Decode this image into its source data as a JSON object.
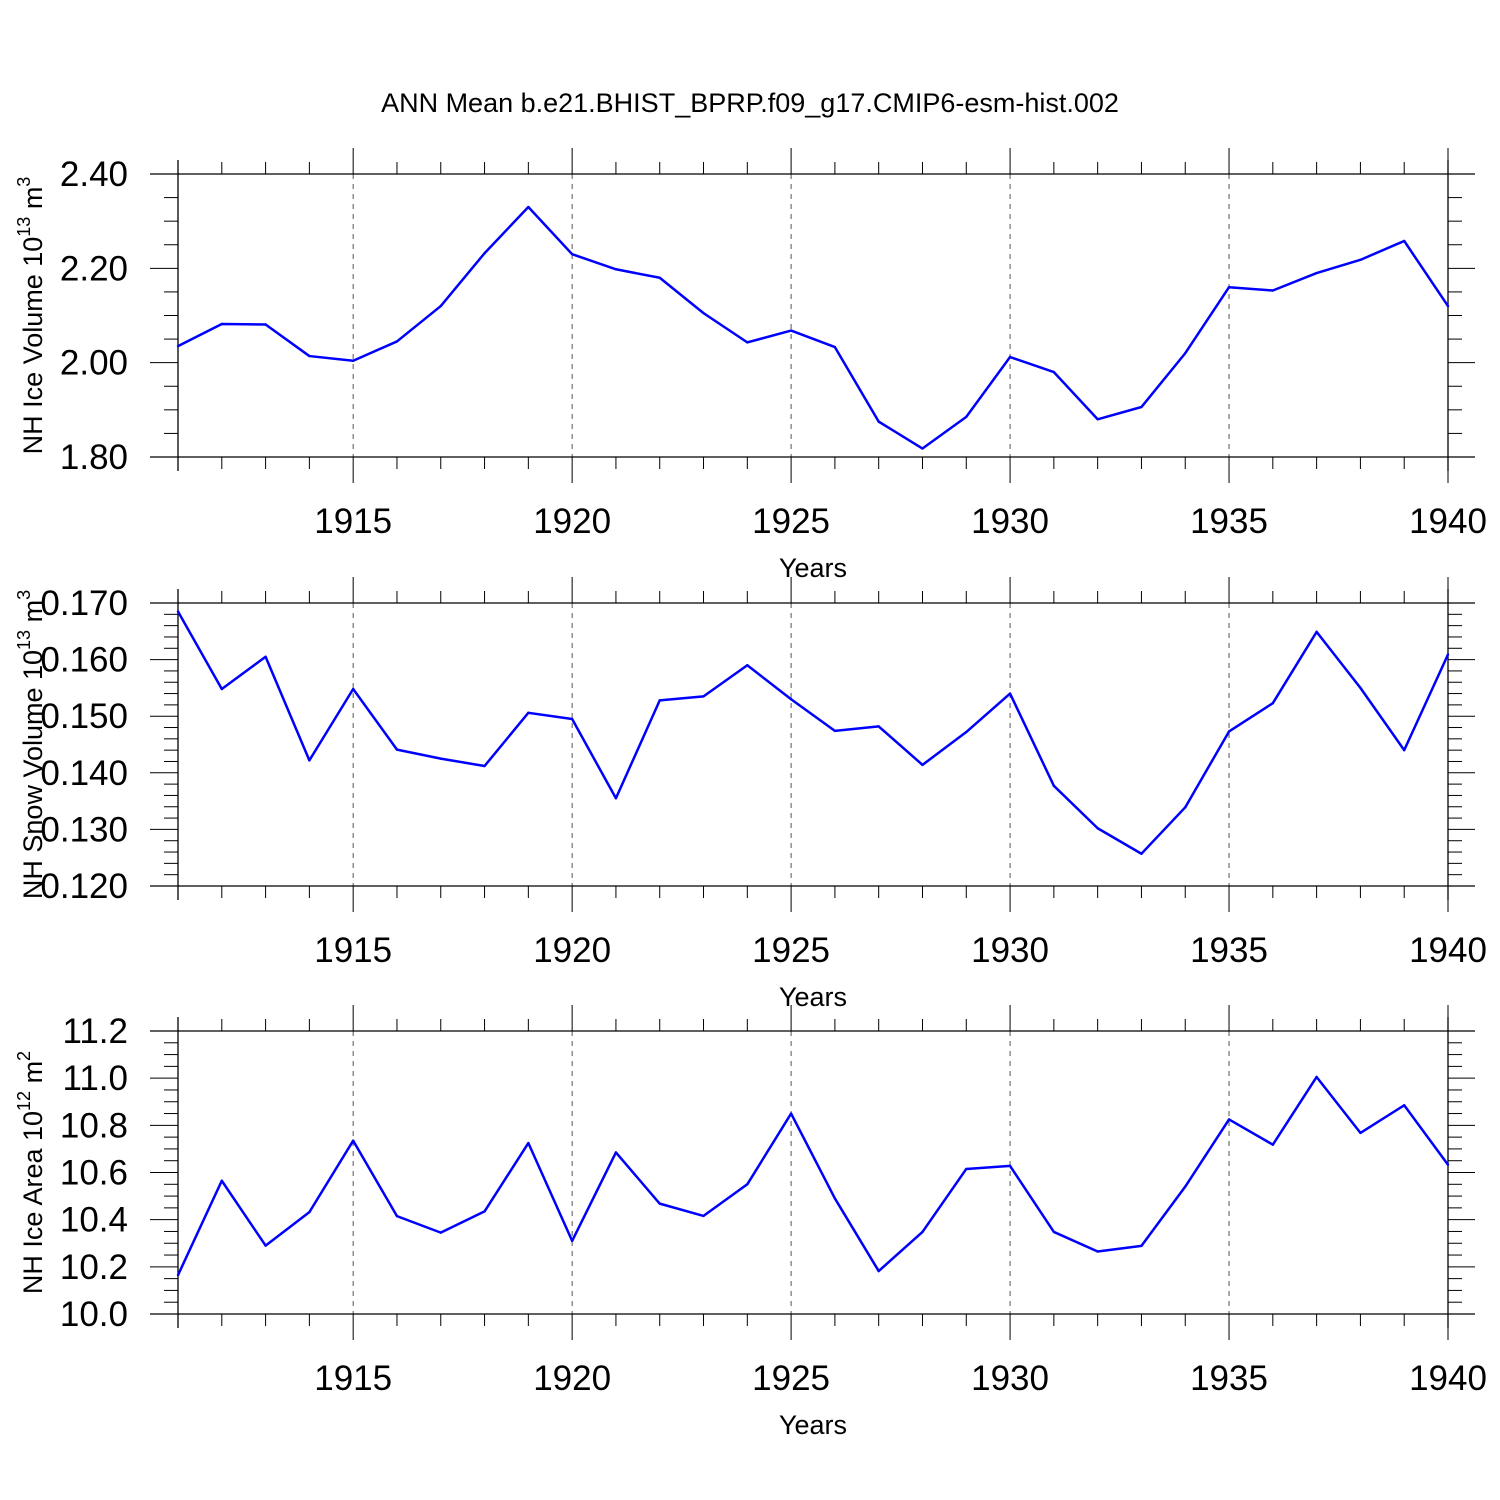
{
  "title": "ANN Mean b.e21.BHIST_BPRP.f09_g17.CMIP6-esm-hist.002",
  "colors": {
    "line": "#0000ff",
    "axis": "#000000",
    "grid": "#555555"
  },
  "chart_data": [
    {
      "type": "line",
      "ylabel": "NH Ice Volume",
      "ylabel_unit_base": "10",
      "ylabel_unit_exp": "13",
      "ylabel_unit_sym": "m",
      "ylabel_unit_sym_exp": "3",
      "xlabel": "Years",
      "xlim": [
        1911,
        1940
      ],
      "ylim": [
        1.8,
        2.4
      ],
      "xticks": [
        "1915",
        "1920",
        "1925",
        "1930",
        "1935",
        "1940"
      ],
      "yticks": [
        "1.80",
        "2.00",
        "2.20",
        "2.40"
      ],
      "grid": "vertical dashed at major x ticks",
      "x": [
        1911,
        1912,
        1913,
        1914,
        1915,
        1916,
        1917,
        1918,
        1919,
        1920,
        1921,
        1922,
        1923,
        1924,
        1925,
        1926,
        1927,
        1928,
        1929,
        1930,
        1931,
        1932,
        1933,
        1934,
        1935,
        1936,
        1937,
        1938,
        1939,
        1940
      ],
      "series": [
        {
          "values": [
            2.035,
            2.082,
            2.081,
            2.014,
            2.004,
            2.045,
            2.12,
            2.232,
            2.33,
            2.23,
            2.198,
            2.18,
            2.105,
            2.043,
            2.068,
            2.033,
            1.875,
            1.818,
            1.885,
            2.012,
            1.98,
            1.88,
            1.906,
            2.02,
            2.16,
            2.153,
            2.19,
            2.218,
            2.258,
            2.12
          ]
        }
      ]
    },
    {
      "type": "line",
      "ylabel": "NH Snow Volume",
      "ylabel_unit_base": "10",
      "ylabel_unit_exp": "13",
      "ylabel_unit_sym": "m",
      "ylabel_unit_sym_exp": "3",
      "xlabel": "Years",
      "xlim": [
        1911,
        1940
      ],
      "ylim": [
        0.12,
        0.17
      ],
      "xticks": [
        "1915",
        "1920",
        "1925",
        "1930",
        "1935",
        "1940"
      ],
      "yticks": [
        "0.120",
        "0.130",
        "0.140",
        "0.150",
        "0.160",
        "0.170"
      ],
      "grid": "vertical dashed at major x ticks",
      "x": [
        1911,
        1912,
        1913,
        1914,
        1915,
        1916,
        1917,
        1918,
        1919,
        1920,
        1921,
        1922,
        1923,
        1924,
        1925,
        1926,
        1927,
        1928,
        1929,
        1930,
        1931,
        1932,
        1933,
        1934,
        1935,
        1936,
        1937,
        1938,
        1939,
        1940
      ],
      "series": [
        {
          "values": [
            0.1685,
            0.1548,
            0.1605,
            0.1422,
            0.1548,
            0.1441,
            0.1425,
            0.1412,
            0.1506,
            0.1495,
            0.1355,
            0.1528,
            0.1535,
            0.159,
            0.153,
            0.1474,
            0.1482,
            0.1414,
            0.1472,
            0.154,
            0.1377,
            0.1302,
            0.1257,
            0.1339,
            0.1473,
            0.1523,
            0.1649,
            0.155,
            0.144,
            0.1609
          ]
        }
      ]
    },
    {
      "type": "line",
      "ylabel": "NH Ice Area",
      "ylabel_unit_base": "10",
      "ylabel_unit_exp": "12",
      "ylabel_unit_sym": "m",
      "ylabel_unit_sym_exp": "2",
      "xlabel": "Years",
      "xlim": [
        1911,
        1940
      ],
      "ylim": [
        10.0,
        11.2
      ],
      "xticks": [
        "1915",
        "1920",
        "1925",
        "1930",
        "1935",
        "1940"
      ],
      "yticks": [
        "10.0",
        "10.2",
        "10.4",
        "10.6",
        "10.8",
        "11.0",
        "11.2"
      ],
      "grid": "vertical dashed at major x ticks",
      "x": [
        1911,
        1912,
        1913,
        1914,
        1915,
        1916,
        1917,
        1918,
        1919,
        1920,
        1921,
        1922,
        1923,
        1924,
        1925,
        1926,
        1927,
        1928,
        1929,
        1930,
        1931,
        1932,
        1933,
        1934,
        1935,
        1936,
        1937,
        1938,
        1939,
        1940
      ],
      "series": [
        {
          "values": [
            10.165,
            10.565,
            10.29,
            10.432,
            10.735,
            10.415,
            10.345,
            10.435,
            10.725,
            10.31,
            10.685,
            10.468,
            10.416,
            10.55,
            10.85,
            10.49,
            10.182,
            10.348,
            10.615,
            10.628,
            10.348,
            10.265,
            10.289,
            10.54,
            10.825,
            10.718,
            11.005,
            10.768,
            10.885,
            10.633
          ]
        }
      ]
    }
  ]
}
